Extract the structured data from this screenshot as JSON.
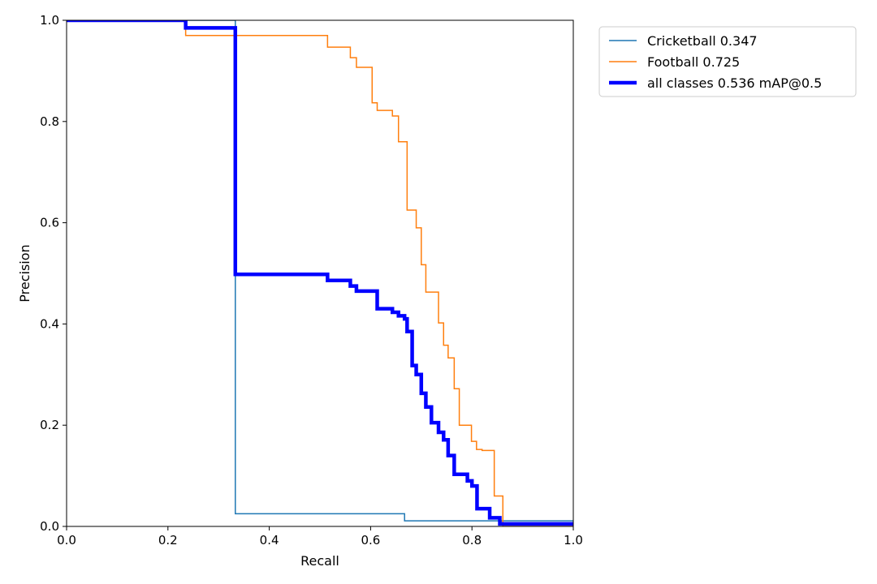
{
  "chart_data": {
    "type": "line",
    "title": "",
    "xlabel": "Recall",
    "ylabel": "Precision",
    "xlim": [
      0,
      1
    ],
    "ylim": [
      0,
      1
    ],
    "xticks": [
      "0.0",
      "0.2",
      "0.4",
      "0.6",
      "0.8",
      "1.0"
    ],
    "yticks": [
      "0.0",
      "0.2",
      "0.4",
      "0.6",
      "0.8",
      "1.0"
    ],
    "grid": false,
    "legend_position": "outside-top-right",
    "series": [
      {
        "name": "Cricketball 0.347",
        "color": "#1f77b4",
        "x": [
          0.0,
          0.333,
          0.333,
          0.667,
          0.667,
          1.0
        ],
        "y": [
          1.0,
          1.0,
          0.025,
          0.025,
          0.011,
          0.011
        ]
      },
      {
        "name": "Football 0.725",
        "color": "#ff7f0e",
        "x": [
          0.0,
          0.235,
          0.235,
          0.515,
          0.515,
          0.56,
          0.56,
          0.572,
          0.572,
          0.603,
          0.603,
          0.613,
          0.613,
          0.643,
          0.643,
          0.655,
          0.655,
          0.667,
          0.667,
          0.672,
          0.672,
          0.69,
          0.69,
          0.7,
          0.7,
          0.709,
          0.709,
          0.718,
          0.718,
          0.734,
          0.734,
          0.744,
          0.744,
          0.753,
          0.753,
          0.765,
          0.765,
          0.775,
          0.775,
          0.791,
          0.791,
          0.799,
          0.799,
          0.809,
          0.809,
          0.82,
          0.82,
          0.844,
          0.844,
          0.861,
          0.861,
          0.87,
          0.87,
          0.88,
          0.88,
          0.89,
          0.89,
          1.0
        ],
        "y": [
          1.0,
          1.0,
          0.97,
          0.97,
          0.947,
          0.947,
          0.926,
          0.926,
          0.907,
          0.907,
          0.837,
          0.837,
          0.822,
          0.822,
          0.811,
          0.811,
          0.76,
          0.76,
          0.76,
          0.76,
          0.625,
          0.625,
          0.59,
          0.59,
          0.517,
          0.517,
          0.463,
          0.463,
          0.463,
          0.463,
          0.402,
          0.402,
          0.358,
          0.358,
          0.333,
          0.333,
          0.272,
          0.272,
          0.2,
          0.2,
          0.2,
          0.2,
          0.168,
          0.168,
          0.152,
          0.152,
          0.15,
          0.15,
          0.06,
          0.06,
          0.0,
          0.0,
          0.0,
          0.0,
          0.0,
          0.0,
          0.0,
          0.0
        ]
      },
      {
        "name": "all classes 0.536 mAP@0.5",
        "color": "#0000ff",
        "x": [
          0.0,
          0.235,
          0.235,
          0.333,
          0.333,
          0.515,
          0.515,
          0.56,
          0.56,
          0.572,
          0.572,
          0.613,
          0.613,
          0.643,
          0.643,
          0.655,
          0.655,
          0.667,
          0.667,
          0.672,
          0.672,
          0.682,
          0.682,
          0.69,
          0.69,
          0.7,
          0.7,
          0.709,
          0.709,
          0.72,
          0.72,
          0.734,
          0.734,
          0.744,
          0.744,
          0.753,
          0.753,
          0.765,
          0.765,
          0.775,
          0.775,
          0.791,
          0.791,
          0.8,
          0.8,
          0.81,
          0.81,
          0.835,
          0.835,
          0.855,
          0.855,
          0.87,
          0.87,
          0.88,
          0.88,
          0.89,
          0.89,
          0.897,
          0.897,
          1.0
        ],
        "y": [
          1.0,
          1.0,
          0.985,
          0.985,
          0.498,
          0.498,
          0.486,
          0.486,
          0.475,
          0.475,
          0.465,
          0.465,
          0.43,
          0.43,
          0.423,
          0.423,
          0.416,
          0.416,
          0.41,
          0.41,
          0.385,
          0.385,
          0.318,
          0.318,
          0.3,
          0.3,
          0.263,
          0.263,
          0.236,
          0.236,
          0.205,
          0.205,
          0.186,
          0.186,
          0.171,
          0.171,
          0.14,
          0.14,
          0.103,
          0.103,
          0.103,
          0.103,
          0.09,
          0.09,
          0.08,
          0.08,
          0.035,
          0.035,
          0.017,
          0.017,
          0.005,
          0.005,
          0.005,
          0.005,
          0.005,
          0.005,
          0.005,
          0.005,
          0.005,
          0.005
        ]
      }
    ]
  }
}
